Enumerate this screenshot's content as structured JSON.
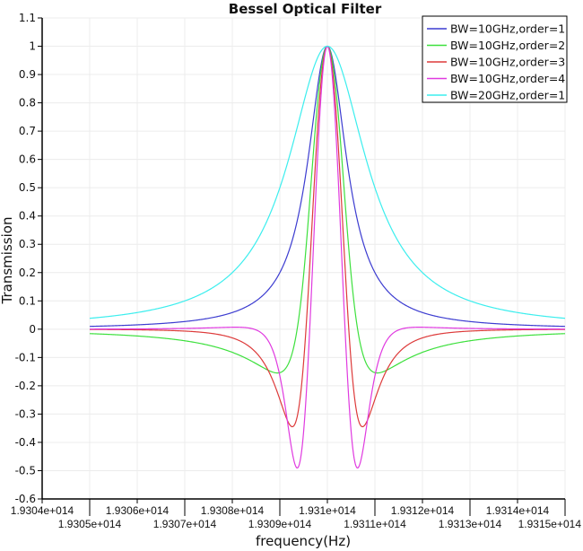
{
  "chart_data": {
    "type": "line",
    "title": "Bessel Optical Filter",
    "xlabel": "frequency(Hz)",
    "ylabel": "Transmission",
    "xlim": [
      193040000000000.0,
      193150000000000.0
    ],
    "ylim": [
      -0.6,
      1.1
    ],
    "grid": true,
    "legend_position": "top-right",
    "center_frequency_hz": 193100000000000.0,
    "data_x_range": [
      193050000000000.0,
      193150000000000.0
    ],
    "x_ticks": [
      "1.9304e+014",
      "1.9305e+014",
      "1.9306e+014",
      "1.9307e+014",
      "1.9308e+014",
      "1.9309e+014",
      "1.931e+014",
      "1.9311e+014",
      "1.9312e+014",
      "1.9313e+014",
      "1.9314e+014",
      "1.9315e+014"
    ],
    "x_tick_values": [
      193040000000000.0,
      193050000000000.0,
      193060000000000.0,
      193070000000000.0,
      193080000000000.0,
      193090000000000.0,
      193100000000000.0,
      193110000000000.0,
      193120000000000.0,
      193130000000000.0,
      193140000000000.0,
      193150000000000.0
    ],
    "y_ticks": [
      "-0.6",
      "-0.5",
      "-0.4",
      "-0.3",
      "-0.2",
      "-0.1",
      "0",
      "0.1",
      "0.2",
      "0.3",
      "0.4",
      "0.5",
      "0.6",
      "0.7",
      "0.8",
      "0.9",
      "1",
      "1.1"
    ],
    "y_tick_values": [
      -0.6,
      -0.5,
      -0.4,
      -0.3,
      -0.2,
      -0.1,
      0,
      0.1,
      0.2,
      0.3,
      0.4,
      0.5,
      0.6,
      0.7,
      0.8,
      0.9,
      1,
      1.1
    ],
    "series": [
      {
        "name": "BW=10GHz,order=1",
        "bandwidth_ghz": 10,
        "order": 1,
        "color": "#3c3cd0"
      },
      {
        "name": "BW=10GHz,order=2",
        "bandwidth_ghz": 10,
        "order": 2,
        "color": "#3de03d"
      },
      {
        "name": "BW=10GHz,order=3",
        "bandwidth_ghz": 10,
        "order": 3,
        "color": "#dd3a3a"
      },
      {
        "name": "BW=10GHz,order=4",
        "bandwidth_ghz": 10,
        "order": 4,
        "color": "#e03ae0"
      },
      {
        "name": "BW=20GHz,order=1",
        "bandwidth_ghz": 20,
        "order": 1,
        "color": "#3ceeee"
      }
    ]
  }
}
